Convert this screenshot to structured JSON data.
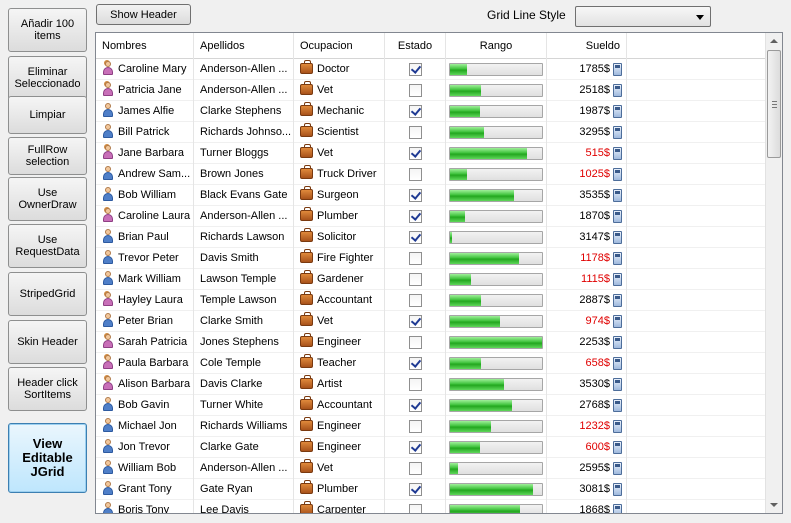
{
  "sidebar": {
    "buttons": [
      {
        "label": "Añadir 100 items"
      },
      {
        "label": "Eliminar Seleccionado"
      },
      {
        "label": "Limpiar"
      },
      {
        "label": "FullRow selection"
      },
      {
        "label": "Use OwnerDraw"
      },
      {
        "label": "Use RequestData"
      },
      {
        "label": "StripedGrid"
      },
      {
        "label": "Skin Header"
      },
      {
        "label": "Header click SortItems"
      },
      {
        "label": "View Editable JGrid"
      }
    ]
  },
  "toolbar": {
    "show_header_label": "Show Header",
    "grid_line_style_label": "Grid Line Style",
    "grid_line_style_value": ""
  },
  "grid": {
    "columns": {
      "nombres": "Nombres",
      "apellidos": "Apellidos",
      "ocupacion": "Ocupacion",
      "estado": "Estado",
      "rango": "Rango",
      "sueldo": "Sueldo"
    },
    "low_salary_color": "#e00000",
    "bar_color": "#3ec23b",
    "rows": [
      {
        "nombre": "Caroline Mary",
        "gender": "female",
        "apellido": "Anderson-Allen ...",
        "ocupacion": "Doctor",
        "estado": true,
        "rango": 0.19,
        "sueldo": "1785$",
        "low": false
      },
      {
        "nombre": "Patricia Jane",
        "gender": "female",
        "apellido": "Anderson-Allen ...",
        "ocupacion": "Vet",
        "estado": false,
        "rango": 0.34,
        "sueldo": "2518$",
        "low": false
      },
      {
        "nombre": "James Alfie",
        "gender": "male",
        "apellido": "Clarke Stephens",
        "ocupacion": "Mechanic",
        "estado": true,
        "rango": 0.33,
        "sueldo": "1987$",
        "low": false
      },
      {
        "nombre": "Bill Patrick",
        "gender": "male",
        "apellido": "Richards Johnso...",
        "ocupacion": "Scientist",
        "estado": false,
        "rango": 0.37,
        "sueldo": "3295$",
        "low": false
      },
      {
        "nombre": "Jane Barbara",
        "gender": "female",
        "apellido": "Turner Bloggs",
        "ocupacion": "Vet",
        "estado": true,
        "rango": 0.84,
        "sueldo": "515$",
        "low": true
      },
      {
        "nombre": "Andrew Sam...",
        "gender": "male",
        "apellido": "Brown Jones",
        "ocupacion": "Truck Driver",
        "estado": false,
        "rango": 0.18,
        "sueldo": "1025$",
        "low": true
      },
      {
        "nombre": "Bob William",
        "gender": "male",
        "apellido": "Black Evans Gate",
        "ocupacion": "Surgeon",
        "estado": true,
        "rango": 0.7,
        "sueldo": "3535$",
        "low": false
      },
      {
        "nombre": "Caroline Laura",
        "gender": "female",
        "apellido": "Anderson-Allen ...",
        "ocupacion": "Plumber",
        "estado": true,
        "rango": 0.16,
        "sueldo": "1870$",
        "low": false
      },
      {
        "nombre": "Brian Paul",
        "gender": "male",
        "apellido": "Richards Lawson",
        "ocupacion": "Solicitor",
        "estado": true,
        "rango": 0.02,
        "sueldo": "3147$",
        "low": false
      },
      {
        "nombre": "Trevor Peter",
        "gender": "male",
        "apellido": "Davis Smith",
        "ocupacion": "Fire Fighter",
        "estado": false,
        "rango": 0.75,
        "sueldo": "1178$",
        "low": true
      },
      {
        "nombre": "Mark William",
        "gender": "male",
        "apellido": "Lawson Temple",
        "ocupacion": "Gardener",
        "estado": false,
        "rango": 0.23,
        "sueldo": "1115$",
        "low": true
      },
      {
        "nombre": "Hayley Laura",
        "gender": "female",
        "apellido": "Temple Lawson",
        "ocupacion": "Accountant",
        "estado": false,
        "rango": 0.34,
        "sueldo": "2887$",
        "low": false
      },
      {
        "nombre": "Peter Brian",
        "gender": "male",
        "apellido": "Clarke Smith",
        "ocupacion": "Vet",
        "estado": true,
        "rango": 0.54,
        "sueldo": "974$",
        "low": true
      },
      {
        "nombre": "Sarah Patricia",
        "gender": "female",
        "apellido": "Jones Stephens",
        "ocupacion": "Engineer",
        "estado": false,
        "rango": 1.0,
        "sueldo": "2253$",
        "low": false
      },
      {
        "nombre": "Paula Barbara",
        "gender": "female",
        "apellido": "Cole Temple",
        "ocupacion": "Teacher",
        "estado": true,
        "rango": 0.34,
        "sueldo": "658$",
        "low": true
      },
      {
        "nombre": "Alison Barbara",
        "gender": "female",
        "apellido": "Davis Clarke",
        "ocupacion": "Artist",
        "estado": false,
        "rango": 0.59,
        "sueldo": "3530$",
        "low": false
      },
      {
        "nombre": "Bob Gavin",
        "gender": "male",
        "apellido": "Turner White",
        "ocupacion": "Accountant",
        "estado": true,
        "rango": 0.67,
        "sueldo": "2768$",
        "low": false
      },
      {
        "nombre": "Michael Jon",
        "gender": "male",
        "apellido": "Richards Williams",
        "ocupacion": "Engineer",
        "estado": false,
        "rango": 0.45,
        "sueldo": "1232$",
        "low": true
      },
      {
        "nombre": "Jon Trevor",
        "gender": "male",
        "apellido": "Clarke Gate",
        "ocupacion": "Engineer",
        "estado": true,
        "rango": 0.33,
        "sueldo": "600$",
        "low": true
      },
      {
        "nombre": "William Bob",
        "gender": "male",
        "apellido": "Anderson-Allen ...",
        "ocupacion": "Vet",
        "estado": false,
        "rango": 0.09,
        "sueldo": "2595$",
        "low": false
      },
      {
        "nombre": "Grant Tony",
        "gender": "male",
        "apellido": "Gate  Ryan",
        "ocupacion": "Plumber",
        "estado": true,
        "rango": 0.9,
        "sueldo": "3081$",
        "low": false
      },
      {
        "nombre": "Boris Tony",
        "gender": "male",
        "apellido": "Lee Davis",
        "ocupacion": "Carpenter",
        "estado": false,
        "rango": 0.76,
        "sueldo": "1868$",
        "low": false
      }
    ]
  }
}
